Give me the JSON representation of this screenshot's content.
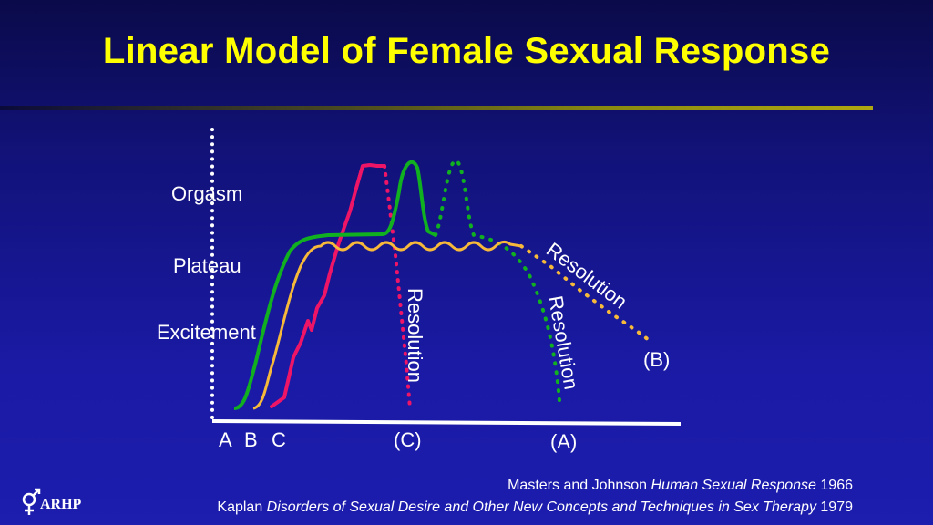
{
  "title": "Linear Model of Female Sexual Response",
  "stage_labels": {
    "orgasm": "Orgasm",
    "plateau": "Plateau",
    "excitement": "Excitement"
  },
  "axis_labels": {
    "a": "A",
    "b": "B",
    "c": "C",
    "c_paren": "(C)",
    "a_paren": "(A)",
    "b_paren": "(B)"
  },
  "resolution_label": "Resolution",
  "citations": {
    "line1_prefix": "Masters and Johnson ",
    "line1_italic": "Human Sexual Response",
    "line1_suffix": " 1966",
    "line2_prefix": "Kaplan ",
    "line2_italic": "Disorders of Sexual Desire and Other New Concepts and Techniques in Sex Therapy",
    "line2_suffix": " 1979"
  },
  "logo_text": "ARHP",
  "colors": {
    "title": "#ffff00",
    "curve_a": "#11b021",
    "curve_b": "#f6b93a",
    "curve_c": "#ee1567",
    "text": "#ffffff"
  }
}
